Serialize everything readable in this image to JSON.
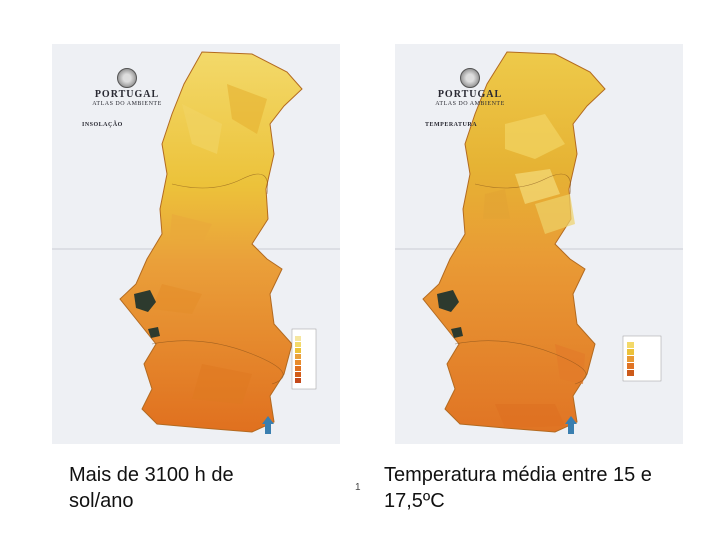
{
  "maps": [
    {
      "title": "PORTUGAL",
      "subtitle": "ATLAS DO AMBIENTE",
      "theme": "INSOLAÇÃO",
      "caption": "Mais de 3100 h de sol/ano"
    },
    {
      "title": "PORTUGAL",
      "subtitle": "ATLAS DO AMBIENTE",
      "theme": "TEMPERATURA",
      "caption": "Temperatura média entre 15 e 17,5ºC"
    }
  ],
  "page_number": "1",
  "colors": {
    "paper": "#eef0f4",
    "north_yellow": "#ecc23a",
    "north_light": "#f3d96a",
    "center_orange": "#eaa03a",
    "south_orange": "#e88b2c",
    "south_deep": "#e0701f",
    "water": "#2d3a2e"
  }
}
